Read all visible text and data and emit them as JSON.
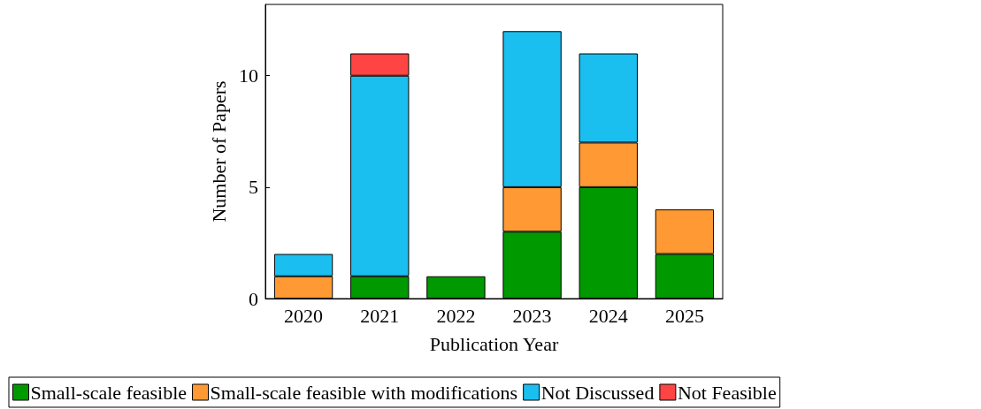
{
  "chart_data": {
    "type": "bar",
    "xlabel": "Publication Year",
    "ylabel": "Number of Papers",
    "categories": [
      "2020",
      "2021",
      "2022",
      "2023",
      "2024",
      "2025"
    ],
    "stacked": true,
    "ylim": [
      0,
      13.2
    ],
    "yticks": [
      0,
      5,
      10
    ],
    "grid": false,
    "legend": "bottom",
    "series": [
      {
        "name": "Small-scale feasible",
        "color": "#009900",
        "values": [
          null,
          1,
          1,
          3,
          5,
          2
        ]
      },
      {
        "name": "Small-scale feasible with modifications",
        "color": "#ff9933",
        "values": [
          1,
          null,
          null,
          2,
          2,
          2
        ]
      },
      {
        "name": "Not Discussed",
        "color": "#1abff0",
        "values": [
          1,
          9,
          null,
          7,
          4,
          null
        ]
      },
      {
        "name": "Not Feasible",
        "color": "#ff4444",
        "values": [
          null,
          1,
          null,
          null,
          null,
          null
        ]
      }
    ]
  }
}
